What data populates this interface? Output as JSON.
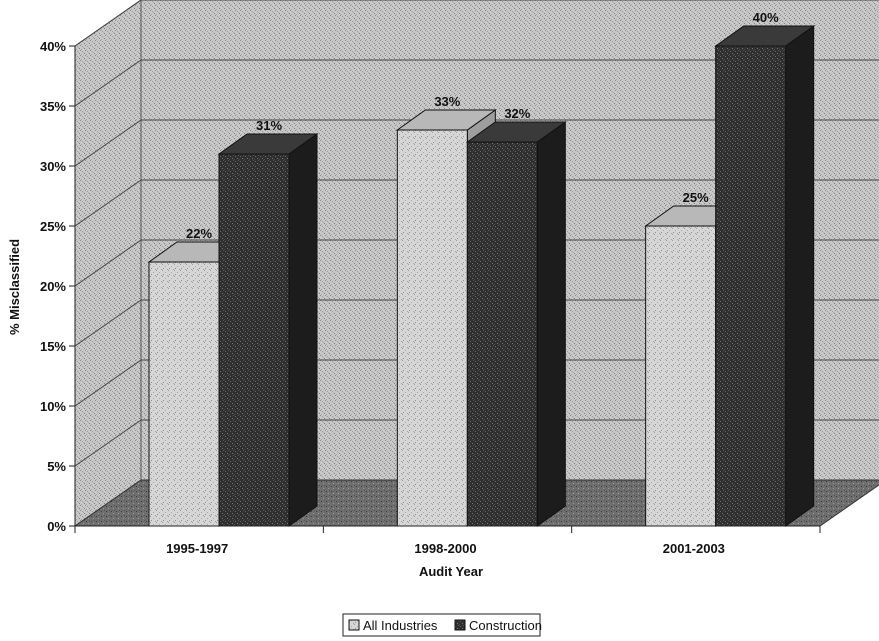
{
  "chart_data": {
    "type": "bar",
    "categories": [
      "1995-1997",
      "1998-2000",
      "2001-2003"
    ],
    "series": [
      {
        "name": "All Industries",
        "values": [
          22,
          33,
          25
        ]
      },
      {
        "name": "Construction",
        "values": [
          31,
          32,
          40
        ]
      }
    ],
    "data_labels": [
      [
        "22%",
        "33%",
        "25%"
      ],
      [
        "31%",
        "32%",
        "40%"
      ]
    ],
    "xlabel": "Audit Year",
    "ylabel": "% Misclassified",
    "ylim": [
      0,
      40
    ],
    "yticks": [
      "0%",
      "5%",
      "10%",
      "15%",
      "20%",
      "25%",
      "30%",
      "35%",
      "40%"
    ],
    "ytick_values": [
      0,
      5,
      10,
      15,
      20,
      25,
      30,
      35,
      40
    ],
    "grid": true,
    "legend_position": "bottom",
    "style": "3d",
    "colors": {
      "wall": "#c4c4c4",
      "floor": "#6a6a6a",
      "all_industries": "#d2d2d2",
      "construction": "#2e2e2e"
    }
  }
}
